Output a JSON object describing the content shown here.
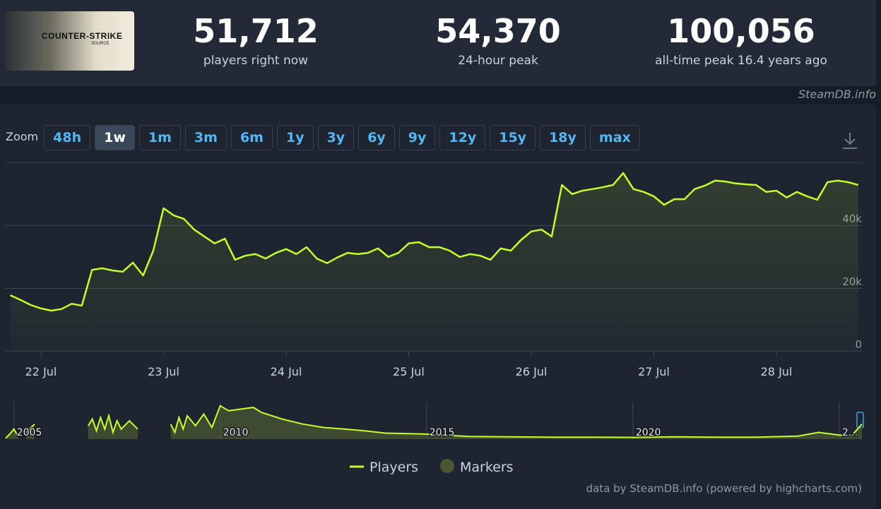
{
  "header": {
    "logo": {
      "title": "COUNTER-STRIKE",
      "subtitle": "SOURCE"
    },
    "stats": [
      {
        "value": "51,712",
        "label": "players right now"
      },
      {
        "value": "54,370",
        "label": "24-hour peak"
      },
      {
        "value": "100,056",
        "label": "all-time peak 16.4 years ago"
      }
    ],
    "source": "SteamDB.info"
  },
  "zoom": {
    "label": "Zoom",
    "buttons": [
      "48h",
      "1w",
      "1m",
      "3m",
      "6m",
      "1y",
      "3y",
      "6y",
      "9y",
      "12y",
      "15y",
      "18y",
      "max"
    ],
    "selected": 1
  },
  "chart_data": {
    "type": "line",
    "categories": [
      null,
      null,
      null,
      "22 Jul",
      null,
      null,
      null,
      null,
      null,
      null,
      null,
      null,
      null,
      null,
      null,
      "23 Jul",
      null,
      null,
      null,
      null,
      null,
      null,
      null,
      null,
      null,
      null,
      null,
      "24 Jul",
      null,
      null,
      null,
      null,
      null,
      null,
      null,
      null,
      null,
      null,
      null,
      "25 Jul",
      null,
      null,
      null,
      null,
      null,
      null,
      null,
      null,
      null,
      null,
      null,
      "26 Jul",
      null,
      null,
      null,
      null,
      null,
      null,
      null,
      null,
      null,
      null,
      null,
      "27 Jul",
      null,
      null,
      null,
      null,
      null,
      null,
      null,
      null,
      null,
      null,
      null,
      "28 Jul",
      null,
      null,
      null,
      null,
      null,
      null,
      null,
      null
    ],
    "series": [
      {
        "name": "Players",
        "color": "#c5ff29",
        "values": [
          17700,
          16200,
          14600,
          13500,
          12800,
          13300,
          15000,
          14400,
          25800,
          26300,
          25600,
          25200,
          28100,
          24000,
          31900,
          45400,
          43100,
          42000,
          38600,
          36400,
          34200,
          35700,
          29000,
          30300,
          30800,
          29400,
          31200,
          32400,
          30800,
          33000,
          29400,
          27900,
          29700,
          31200,
          30800,
          31200,
          32600,
          29900,
          31200,
          34200,
          34600,
          33000,
          33000,
          31900,
          29900,
          30800,
          30300,
          29000,
          32600,
          31900,
          35300,
          38000,
          38600,
          36400,
          52800,
          49900,
          51000,
          51500,
          52100,
          52800,
          56600,
          51500,
          50600,
          49200,
          46500,
          48300,
          48300,
          51500,
          52600,
          54200,
          53900,
          53300,
          53000,
          52800,
          50600,
          51000,
          48800,
          50600,
          49200,
          48100,
          53700,
          54200,
          53700,
          52800
        ]
      },
      {
        "name": "Markers",
        "color": "#4b5733"
      }
    ],
    "ylim": [
      0,
      60000
    ],
    "yticks": [
      0,
      {
        "value": 20000,
        "label": "20k"
      },
      {
        "value": 40000,
        "label": "40k"
      }
    ],
    "grid": true,
    "legend": "bottom",
    "navigator": {
      "x": [
        2004.8,
        2004.9,
        2005.0,
        2005.1,
        2005.2,
        2005.3,
        2005.5,
        2005.6,
        2006.8,
        2006.9,
        2007.0,
        2007.1,
        2007.2,
        2007.3,
        2007.4,
        2007.5,
        2007.6,
        2007.8,
        2008.0,
        2008.4,
        2008.8,
        2008.9,
        2009.0,
        2009.1,
        2009.2,
        2009.4,
        2009.6,
        2009.8,
        2010.0,
        2010.2,
        2010.5,
        2010.8,
        2011.0,
        2011.5,
        2012.0,
        2012.5,
        2013.0,
        2013.5,
        2014.0,
        2015.0,
        2016.0,
        2017.0,
        2018.0,
        2019.0,
        2020.0,
        2021.0,
        2022.0,
        2023.0,
        2024.0,
        2024.5,
        2025.0,
        2025.3,
        2025.55
      ],
      "values": [
        3000,
        15000,
        30000,
        8000,
        null,
        20000,
        45000,
        null,
        40000,
        60000,
        25000,
        65000,
        30000,
        70000,
        20000,
        55000,
        30000,
        55000,
        30000,
        null,
        45000,
        20000,
        65000,
        30000,
        70000,
        40000,
        75000,
        35000,
        100000,
        85000,
        90000,
        95000,
        80000,
        60000,
        45000,
        35000,
        30000,
        25000,
        18000,
        15000,
        8000,
        7000,
        6000,
        6000,
        5000,
        7000,
        6000,
        6000,
        9000,
        20000,
        12000,
        10000,
        45000
      ],
      "xlim": [
        2004.8,
        2025.55
      ],
      "ylim": [
        0,
        110000
      ],
      "xticks": [
        2005,
        2010,
        2015,
        2020,
        {
          "value": 2025,
          "label": "2..."
        }
      ]
    },
    "credits": "data by SteamDB.info (powered by highcharts.com)"
  }
}
